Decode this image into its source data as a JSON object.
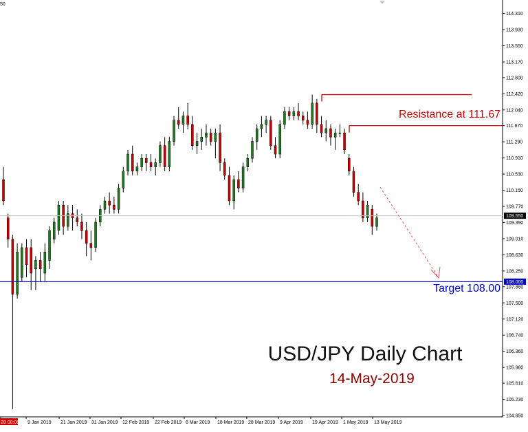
{
  "colors": {
    "bull": "#1e7b1e",
    "bear": "#cc0000",
    "resistance_line": "#cc0000",
    "target_line": "#0000cc",
    "current_price_line": "#c0c0c0",
    "projection_arrow": "#e05050",
    "axis": "#000000",
    "current_price_badge": "#000000",
    "target_badge": "#0000cc"
  },
  "chart_data": {
    "type": "candlestick",
    "title": "USD/JPY Daily Chart",
    "subtitle": "14-May-2019",
    "ylim": [
      104.85,
      114.4
    ],
    "y_ticks": [
      "114.310",
      "113.930",
      "113.550",
      "113.170",
      "112.800",
      "112.420",
      "112.040",
      "111.670",
      "111.290",
      "110.910",
      "110.530",
      "110.150",
      "109.770",
      "109.390",
      "109.010",
      "108.630",
      "108.250",
      "107.880",
      "107.500",
      "107.120",
      "106.740",
      "106.360",
      "105.980",
      "105.610",
      "105.230",
      "104.850"
    ],
    "x_ticks": [
      "28 00:00",
      "9 Jan 2019",
      "21 Jan 2019",
      "31 Jan 2019",
      "12 Feb 2019",
      "22 Feb 2019",
      "6 Mar 2019",
      "18 Mar 2019",
      "28 Mar 2019",
      "9 Apr 2019",
      "19 Apr 2019",
      "1 May 2019",
      "13 May 2019"
    ],
    "top_left_label": "50",
    "current_price": {
      "value": 109.55,
      "label": "109.550"
    },
    "resistance": {
      "value": 111.67,
      "label": "Resistance at 111.67"
    },
    "prior_high_level": 112.4,
    "target": {
      "value": 108.0,
      "label": "Target 108.00",
      "axis_label": "108.000"
    },
    "candles": [
      {
        "o": 110.4,
        "h": 110.7,
        "l": 109.8,
        "c": 109.9
      },
      {
        "o": 109.5,
        "h": 109.6,
        "l": 108.8,
        "c": 109.0
      },
      {
        "o": 109.0,
        "h": 109.1,
        "l": 105.0,
        "c": 107.7
      },
      {
        "o": 107.7,
        "h": 108.9,
        "l": 107.6,
        "c": 108.7
      },
      {
        "o": 108.1,
        "h": 108.9,
        "l": 108.0,
        "c": 108.8
      },
      {
        "o": 108.8,
        "h": 109.0,
        "l": 108.1,
        "c": 108.4
      },
      {
        "o": 108.8,
        "h": 109.0,
        "l": 107.8,
        "c": 108.2
      },
      {
        "o": 108.3,
        "h": 108.6,
        "l": 107.8,
        "c": 108.5
      },
      {
        "o": 108.5,
        "h": 108.7,
        "l": 108.0,
        "c": 108.3
      },
      {
        "o": 108.2,
        "h": 108.9,
        "l": 108.0,
        "c": 108.7
      },
      {
        "o": 108.5,
        "h": 109.3,
        "l": 108.3,
        "c": 109.2
      },
      {
        "o": 109.0,
        "h": 109.5,
        "l": 108.9,
        "c": 109.4
      },
      {
        "o": 109.2,
        "h": 109.9,
        "l": 109.1,
        "c": 109.8
      },
      {
        "o": 109.8,
        "h": 109.9,
        "l": 109.1,
        "c": 109.3
      },
      {
        "o": 109.3,
        "h": 109.8,
        "l": 109.2,
        "c": 109.6
      },
      {
        "o": 109.6,
        "h": 109.8,
        "l": 109.2,
        "c": 109.5
      },
      {
        "o": 109.5,
        "h": 109.7,
        "l": 109.3,
        "c": 109.4
      },
      {
        "o": 109.4,
        "h": 109.6,
        "l": 109.0,
        "c": 109.2
      },
      {
        "o": 109.2,
        "h": 109.4,
        "l": 108.6,
        "c": 108.9
      },
      {
        "o": 108.9,
        "h": 109.2,
        "l": 108.5,
        "c": 108.8
      },
      {
        "o": 108.8,
        "h": 109.5,
        "l": 108.7,
        "c": 109.4
      },
      {
        "o": 109.4,
        "h": 109.8,
        "l": 109.3,
        "c": 109.7
      },
      {
        "o": 109.7,
        "h": 110.0,
        "l": 109.6,
        "c": 109.9
      },
      {
        "o": 109.9,
        "h": 110.1,
        "l": 109.6,
        "c": 109.8
      },
      {
        "o": 109.8,
        "h": 110.0,
        "l": 109.6,
        "c": 109.7
      },
      {
        "o": 109.7,
        "h": 110.3,
        "l": 109.6,
        "c": 110.2
      },
      {
        "o": 110.2,
        "h": 110.7,
        "l": 110.1,
        "c": 110.6
      },
      {
        "o": 110.6,
        "h": 111.1,
        "l": 110.5,
        "c": 111.0
      },
      {
        "o": 111.0,
        "h": 111.2,
        "l": 110.5,
        "c": 110.6
      },
      {
        "o": 110.6,
        "h": 110.8,
        "l": 110.5,
        "c": 110.7
      },
      {
        "o": 110.7,
        "h": 111.0,
        "l": 110.6,
        "c": 110.9
      },
      {
        "o": 110.9,
        "h": 111.0,
        "l": 110.6,
        "c": 110.8
      },
      {
        "o": 110.8,
        "h": 111.0,
        "l": 110.6,
        "c": 110.7
      },
      {
        "o": 110.7,
        "h": 110.9,
        "l": 110.5,
        "c": 110.8
      },
      {
        "o": 110.8,
        "h": 111.3,
        "l": 110.7,
        "c": 111.2
      },
      {
        "o": 111.2,
        "h": 111.4,
        "l": 110.6,
        "c": 110.7
      },
      {
        "o": 110.7,
        "h": 111.4,
        "l": 110.6,
        "c": 111.3
      },
      {
        "o": 111.3,
        "h": 111.9,
        "l": 111.2,
        "c": 111.8
      },
      {
        "o": 111.8,
        "h": 112.1,
        "l": 111.6,
        "c": 111.7
      },
      {
        "o": 111.7,
        "h": 112.0,
        "l": 111.5,
        "c": 111.9
      },
      {
        "o": 111.9,
        "h": 112.2,
        "l": 111.6,
        "c": 111.7
      },
      {
        "o": 111.7,
        "h": 111.9,
        "l": 111.1,
        "c": 111.2
      },
      {
        "o": 111.2,
        "h": 111.5,
        "l": 111.0,
        "c": 111.3
      },
      {
        "o": 111.3,
        "h": 111.6,
        "l": 111.1,
        "c": 111.4
      },
      {
        "o": 111.4,
        "h": 111.7,
        "l": 111.2,
        "c": 111.5
      },
      {
        "o": 111.5,
        "h": 111.6,
        "l": 111.2,
        "c": 111.3
      },
      {
        "o": 111.3,
        "h": 111.6,
        "l": 110.9,
        "c": 111.5
      },
      {
        "o": 111.5,
        "h": 111.7,
        "l": 110.6,
        "c": 110.8
      },
      {
        "o": 110.8,
        "h": 110.9,
        "l": 110.4,
        "c": 110.5
      },
      {
        "o": 110.5,
        "h": 110.7,
        "l": 109.8,
        "c": 109.9
      },
      {
        "o": 109.9,
        "h": 110.5,
        "l": 109.7,
        "c": 110.4
      },
      {
        "o": 110.4,
        "h": 110.6,
        "l": 110.1,
        "c": 110.2
      },
      {
        "o": 110.2,
        "h": 110.8,
        "l": 110.1,
        "c": 110.7
      },
      {
        "o": 110.7,
        "h": 111.0,
        "l": 110.6,
        "c": 110.9
      },
      {
        "o": 110.9,
        "h": 111.4,
        "l": 110.8,
        "c": 111.3
      },
      {
        "o": 111.3,
        "h": 111.7,
        "l": 111.1,
        "c": 111.6
      },
      {
        "o": 111.6,
        "h": 111.9,
        "l": 111.4,
        "c": 111.7
      },
      {
        "o": 111.7,
        "h": 111.9,
        "l": 111.5,
        "c": 111.8
      },
      {
        "o": 111.8,
        "h": 111.9,
        "l": 111.1,
        "c": 111.2
      },
      {
        "o": 111.2,
        "h": 111.4,
        "l": 110.9,
        "c": 111.0
      },
      {
        "o": 111.0,
        "h": 111.8,
        "l": 110.9,
        "c": 111.7
      },
      {
        "o": 111.7,
        "h": 112.1,
        "l": 111.6,
        "c": 112.0
      },
      {
        "o": 112.0,
        "h": 112.1,
        "l": 111.8,
        "c": 111.9
      },
      {
        "o": 111.9,
        "h": 112.1,
        "l": 111.8,
        "c": 112.0
      },
      {
        "o": 112.0,
        "h": 112.2,
        "l": 111.8,
        "c": 111.9
      },
      {
        "o": 111.9,
        "h": 112.0,
        "l": 111.7,
        "c": 111.8
      },
      {
        "o": 111.8,
        "h": 112.0,
        "l": 111.6,
        "c": 111.7
      },
      {
        "o": 111.7,
        "h": 112.4,
        "l": 111.6,
        "c": 112.2
      },
      {
        "o": 112.2,
        "h": 112.3,
        "l": 111.5,
        "c": 111.7
      },
      {
        "o": 111.7,
        "h": 111.9,
        "l": 111.4,
        "c": 111.5
      },
      {
        "o": 111.5,
        "h": 111.8,
        "l": 111.3,
        "c": 111.6
      },
      {
        "o": 111.6,
        "h": 111.7,
        "l": 111.2,
        "c": 111.4
      },
      {
        "o": 111.4,
        "h": 111.6,
        "l": 111.1,
        "c": 111.5
      },
      {
        "o": 111.5,
        "h": 111.7,
        "l": 111.4,
        "c": 111.5
      },
      {
        "o": 111.5,
        "h": 111.6,
        "l": 111.0,
        "c": 111.1
      },
      {
        "o": 110.9,
        "h": 111.0,
        "l": 110.5,
        "c": 110.6
      },
      {
        "o": 110.6,
        "h": 110.7,
        "l": 110.0,
        "c": 110.1
      },
      {
        "o": 110.1,
        "h": 110.3,
        "l": 109.8,
        "c": 109.9
      },
      {
        "o": 109.9,
        "h": 110.1,
        "l": 109.4,
        "c": 109.5
      },
      {
        "o": 109.5,
        "h": 109.9,
        "l": 109.4,
        "c": 109.8
      },
      {
        "o": 109.7,
        "h": 109.8,
        "l": 109.1,
        "c": 109.3
      },
      {
        "o": 109.3,
        "h": 109.6,
        "l": 109.2,
        "c": 109.5
      }
    ]
  }
}
